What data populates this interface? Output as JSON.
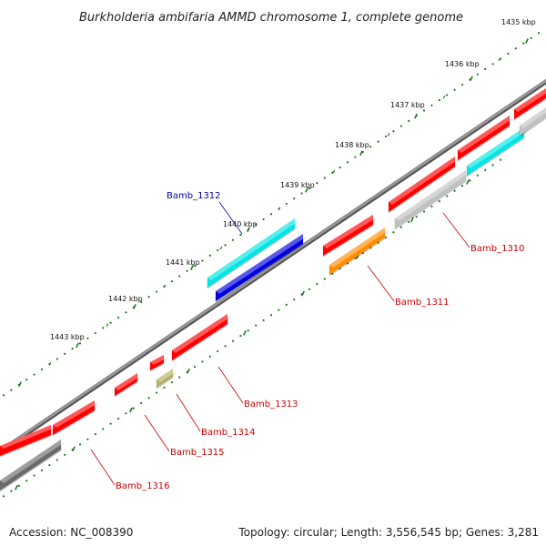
{
  "title": "Burkholderia ambifaria AMMD chromosome 1, complete genome",
  "footer": {
    "accession": "Accession: NC_008390",
    "summary": "Topology: circular; Length: 3,556,545 bp; Genes: 3,281"
  },
  "ruler": {
    "ticks": [
      "1435 kbp",
      "1436 kbp",
      "1437 kbp",
      "1438 kbp",
      "1439 kbp",
      "1440 kbp",
      "1441 kbp",
      "1442 kbp",
      "1443 kbp"
    ],
    "tick_color": "#1a7a1a"
  },
  "genes": [
    {
      "id": "Bamb_1310",
      "label": "Bamb_1310",
      "color": "#ff0000",
      "label_color": "#cc0000"
    },
    {
      "id": "Bamb_1311",
      "label": "Bamb_1311",
      "color": "#ff8c00",
      "label_color": "#cc0000"
    },
    {
      "id": "Bamb_1312",
      "label": "Bamb_1312",
      "color": "#0000dd",
      "label_color": "#0000aa"
    },
    {
      "id": "Bamb_1313",
      "label": "Bamb_1313",
      "color": "#ff0000",
      "label_color": "#cc0000"
    },
    {
      "id": "Bamb_1314",
      "label": "Bamb_1314",
      "color": "#b5b060",
      "label_color": "#cc0000"
    },
    {
      "id": "Bamb_1315",
      "label": "Bamb_1315",
      "color": "#ff0000",
      "label_color": "#cc0000"
    },
    {
      "id": "Bamb_1316",
      "label": "Bamb_1316",
      "color": "#ff0000",
      "label_color": "#cc0000"
    }
  ],
  "feature_colors": {
    "cds": "#ff0000",
    "gene_highlight": "#00e5e5",
    "rrna_gray": "#c0c0c0",
    "pseudo_dark": "#6a6a6a",
    "backbone": "#888888"
  }
}
